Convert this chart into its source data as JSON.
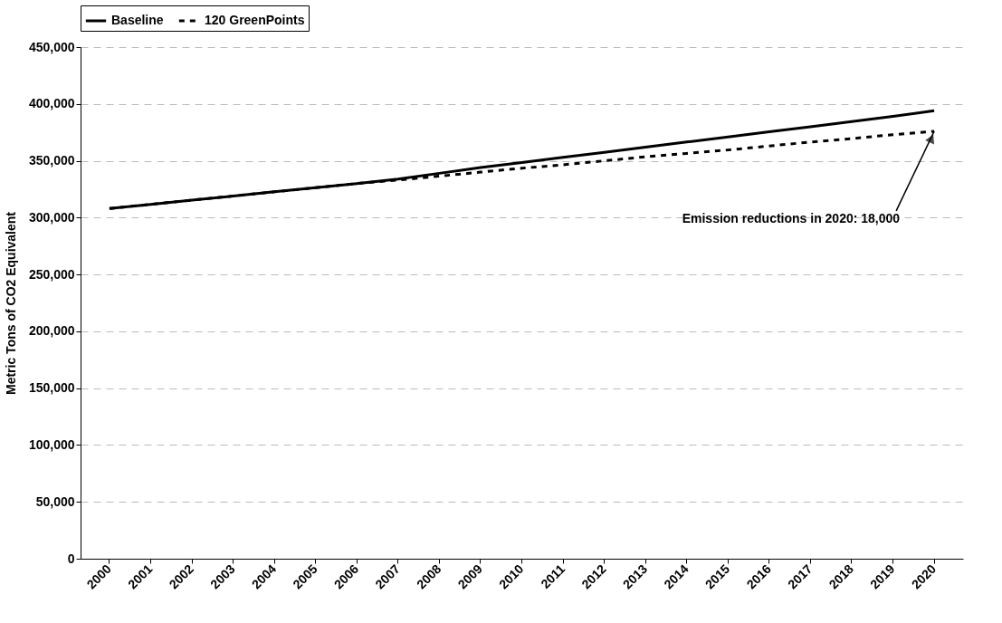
{
  "chart_data": {
    "type": "line",
    "ylabel": "Metric Tons of CO2 Equivalent",
    "categories": [
      "2000",
      "2001",
      "2002",
      "2003",
      "2004",
      "2005",
      "2006",
      "2007",
      "2008",
      "2009",
      "2010",
      "2011",
      "2012",
      "2013",
      "2014",
      "2015",
      "2016",
      "2017",
      "2018",
      "2019",
      "2020"
    ],
    "series": [
      {
        "name": "Baseline",
        "color": "#000000",
        "line_style": "solid",
        "values": [
          308000,
          311700,
          315400,
          319000,
          322700,
          326300,
          330000,
          334000,
          339000,
          344000,
          348500,
          353000,
          357500,
          362000,
          366500,
          371000,
          375500,
          380000,
          384500,
          389000,
          394000
        ]
      },
      {
        "name": "120 GreenPoints",
        "color": "#000000",
        "line_style": "dashed",
        "values": [
          308000,
          311700,
          315400,
          319000,
          322700,
          326300,
          330000,
          333000,
          336500,
          340000,
          343500,
          346500,
          350000,
          353500,
          356500,
          359500,
          363000,
          366500,
          369500,
          373000,
          376000
        ]
      }
    ],
    "ylim": [
      0,
      450000
    ],
    "yticks": [
      0,
      {
        "value": 50000,
        "label": "50,000"
      },
      {
        "value": 100000,
        "label": "100,000"
      },
      {
        "value": 150000,
        "label": "150,000"
      },
      {
        "value": 200000,
        "label": "200,000"
      },
      {
        "value": 250000,
        "label": "250,000"
      },
      {
        "value": 300000,
        "label": "300,000"
      },
      {
        "value": 350000,
        "label": "350,000"
      },
      {
        "value": 400000,
        "label": "400,000"
      },
      {
        "value": 450000,
        "label": "450,000"
      }
    ],
    "grid": "y",
    "legend": "top",
    "marker": "none",
    "annotations": [
      {
        "text": "Emission reductions in 2020:  18,000",
        "x": "2020",
        "y": 376000
      }
    ]
  }
}
